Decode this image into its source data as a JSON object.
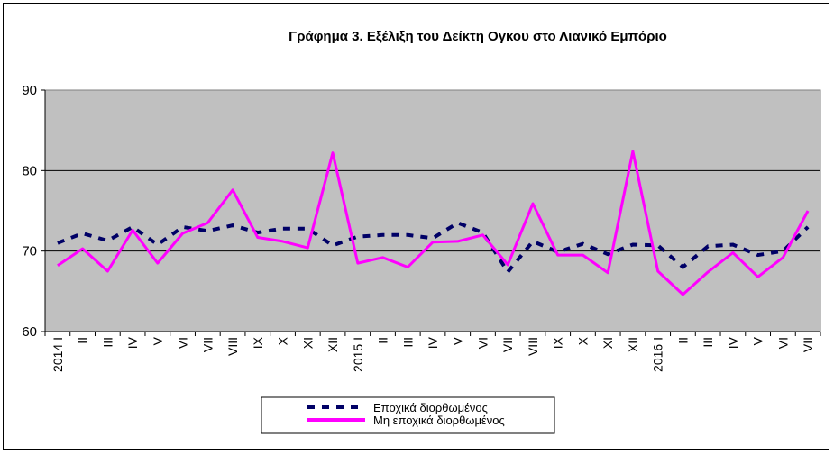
{
  "chart_data": {
    "type": "line",
    "title": "Γράφημα 3. Εξέλιξη του Δείκτη Ογκου στο Λιανικό Εμπόριο",
    "xlabel": "",
    "ylabel": "",
    "ylim": [
      60,
      90
    ],
    "yticks": [
      60,
      70,
      80,
      90
    ],
    "grid": true,
    "legend_position": "bottom",
    "categories": [
      "2014 I",
      "II",
      "III",
      "IV",
      "V",
      "VI",
      "VII",
      "VIII",
      "IX",
      "X",
      "XI",
      "XII",
      "2015 I",
      "II",
      "III",
      "IV",
      "V",
      "VI",
      "VII",
      "VIII",
      "IX",
      "X",
      "XI",
      "XII",
      "2016 I",
      "II",
      "III",
      "IV",
      "V",
      "VI",
      "VII"
    ],
    "series": [
      {
        "name": "Εποχικά διορθωμένος",
        "style": "dashed",
        "color": "#000066",
        "values": [
          71.0,
          72.2,
          71.3,
          73.0,
          70.8,
          73.0,
          72.5,
          73.2,
          72.3,
          72.8,
          72.8,
          70.7,
          71.8,
          72.0,
          72.0,
          71.6,
          73.5,
          72.3,
          67.4,
          71.2,
          69.9,
          70.9,
          69.6,
          70.8,
          70.7,
          68.0,
          70.6,
          70.8,
          69.5,
          70.0,
          73.0
        ]
      },
      {
        "name": "Μη εποχικά διορθωμένος",
        "style": "solid",
        "color": "#ff00ff",
        "values": [
          68.2,
          70.3,
          67.5,
          72.6,
          68.5,
          72.2,
          73.5,
          77.6,
          71.7,
          71.2,
          70.4,
          82.2,
          68.5,
          69.2,
          68.0,
          71.1,
          71.2,
          72.0,
          68.3,
          75.9,
          69.5,
          69.5,
          67.3,
          82.4,
          67.5,
          64.6,
          67.4,
          69.8,
          66.8,
          69.2,
          75.0
        ]
      }
    ]
  }
}
